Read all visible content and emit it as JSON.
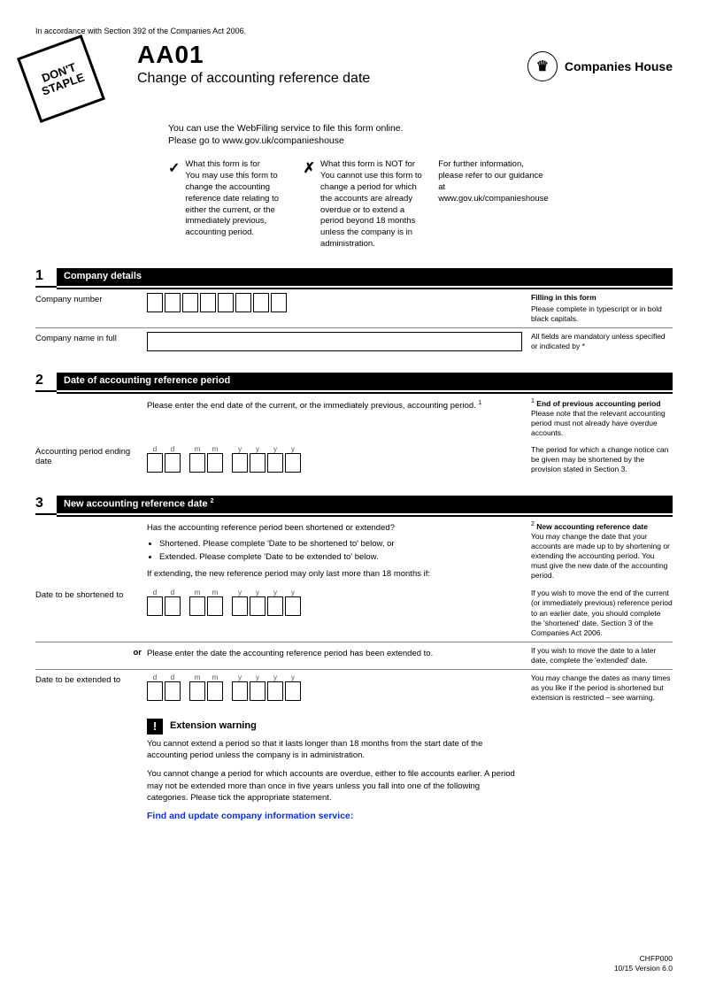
{
  "top_line": "In accordance with Section 392 of the Companies Act 2006.",
  "stamp": "DON'T STAPLE",
  "form_code": "AA01",
  "form_title": "Change of accounting reference date",
  "agency": "Companies House",
  "intro_line1": "You can use the WebFiling service to file this form online.",
  "intro_line2": "Please go to www.gov.uk/companieshouse",
  "guide_tick_mark": "✓",
  "guide_cross_mark": "✗",
  "guide_tick": "What this form is for\nYou may use this form to change the accounting reference date relating to either the current, or the immediately previous, accounting period.",
  "guide_cross": "What this form is NOT for\nYou cannot use this form to change a period for which the accounts are already overdue or to extend a period beyond 18 months unless the company is in administration.",
  "guide_info": "For further information, please refer to our guidance at www.gov.uk/companieshouse",
  "sec1": {
    "num": "1",
    "title": "Company details",
    "label_num": "Company number",
    "label_name": "Company name in full",
    "note_head": "Filling in this form",
    "note1": "Please complete in typescript or in bold black capitals.",
    "note2": "All fields are mandatory unless specified or indicated by *"
  },
  "sec2": {
    "num": "2",
    "title": "Date of accounting reference period",
    "instr": "Please enter the end date of the current, or the immediately previous, accounting period. ",
    "sup": "1",
    "label": "Accounting period ending date",
    "d": "d",
    "m": "m",
    "y": "y",
    "note_sup": "1",
    "note_head": "End of previous accounting period",
    "note1": "Please note that the relevant accounting period must not already have overdue accounts.",
    "note2": "The period for which a change notice can be given may be shortened by the provision stated in Section 3."
  },
  "sec3": {
    "num": "3",
    "title": "New accounting reference date ",
    "sup": "2",
    "intro": "Has the accounting reference period been shortened or extended?",
    "optA": "Shortened. Please complete 'Date to be shortened to' below, or",
    "optB": "Extended. Please complete 'Date to be extended to' below.",
    "ext_note": "If extending, the new reference period may only last more than 18 months if:",
    "label_short": "Date to be shortened to",
    "or": "or",
    "label_ext_instr": "Please enter the date the accounting reference period has been extended to.",
    "label_ext": "Date to be extended to",
    "d": "d",
    "m": "m",
    "y": "y",
    "warn_title": "Extension warning",
    "warn_p1": "You cannot extend a period so that it lasts longer than 18 months from the start date of the accounting period unless the company is in administration.",
    "warn_p2": "You cannot change a period for which accounts are overdue, either to file accounts earlier. A period may not be extended more than once in five years unless you fall into one of the following categories. Please tick the appropriate statement.",
    "link": "Find and update company information service:",
    "note_sup": "2",
    "note_head": "New accounting reference date",
    "note1": "You may change the date that your accounts are made up to by shortening or extending the accounting period. You must give the new date of the accounting period.",
    "note2": "If you wish to move the end of the current (or immediately previous) reference period to an earlier date, you should complete the 'shortened' date. Section 3 of the Companies Act 2006.",
    "note3": "If you wish to move the date to a later date, complete the 'extended' date.",
    "note4": "You may change the dates as many times as you like if the period is shortened but extension is restricted – see warning."
  },
  "footer1": "CHFP000",
  "footer2": "10/15 Version 6.0"
}
